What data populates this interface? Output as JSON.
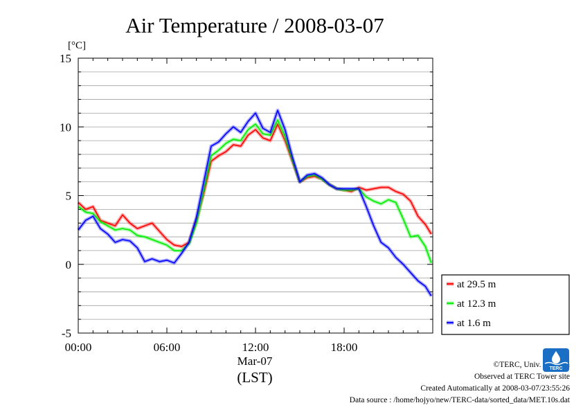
{
  "chart_data": {
    "type": "line",
    "title": "Air Temperature / 2008-03-07",
    "ylabel": "[°C]",
    "xlabel_date": "Mar-07",
    "xlabel_unit": "(LST)",
    "ylim": [
      -5,
      15
    ],
    "xlim": [
      0,
      24
    ],
    "yticks": [
      "15",
      "10",
      "5",
      "0",
      "-5"
    ],
    "xticks": [
      "00:00",
      "06:00",
      "12:00",
      "18:00"
    ],
    "grid": true,
    "legend_position": "right, outside plot",
    "series": [
      {
        "name": "at 29.5 m",
        "color": "#ff0000",
        "x": [
          0,
          0.5,
          1,
          1.5,
          2,
          2.5,
          3,
          3.5,
          4,
          4.5,
          5,
          5.5,
          6,
          6.5,
          7,
          7.5,
          8,
          8.5,
          9,
          9.5,
          10,
          10.5,
          11,
          11.5,
          12,
          12.5,
          13,
          13.5,
          14,
          14.5,
          15,
          15.5,
          16,
          16.5,
          17,
          17.5,
          18,
          18.5,
          19,
          19.5,
          20,
          20.5,
          21,
          21.5,
          22,
          22.5,
          23,
          23.5,
          23.9
        ],
        "values": [
          4.5,
          4.0,
          4.2,
          3.2,
          3.0,
          2.8,
          3.6,
          3.0,
          2.6,
          2.8,
          3.0,
          2.4,
          1.8,
          1.4,
          1.3,
          1.6,
          3.2,
          5.2,
          7.5,
          7.9,
          8.2,
          8.7,
          8.6,
          9.4,
          9.8,
          9.2,
          9.0,
          10.2,
          9.0,
          7.5,
          6.0,
          6.3,
          6.4,
          6.2,
          5.8,
          5.5,
          5.4,
          5.3,
          5.6,
          5.4,
          5.5,
          5.6,
          5.6,
          5.3,
          5.1,
          4.6,
          3.5,
          2.9,
          2.2
        ]
      },
      {
        "name": "at 12.3 m",
        "color": "#00ee00",
        "x": [
          0,
          0.5,
          1,
          1.5,
          2,
          2.5,
          3,
          3.5,
          4,
          4.5,
          5,
          5.5,
          6,
          6.5,
          7,
          7.5,
          8,
          8.5,
          9,
          9.5,
          10,
          10.5,
          11,
          11.5,
          12,
          12.5,
          13,
          13.5,
          14,
          14.5,
          15,
          15.5,
          16,
          16.5,
          17,
          17.5,
          18,
          18.5,
          19,
          19.5,
          20,
          20.5,
          21,
          21.5,
          22,
          22.5,
          23,
          23.5,
          23.9
        ],
        "values": [
          4.2,
          3.8,
          3.7,
          3.1,
          2.8,
          2.5,
          2.6,
          2.5,
          2.1,
          2.0,
          1.8,
          1.6,
          1.4,
          1.0,
          1.0,
          1.5,
          3.0,
          5.4,
          7.9,
          8.3,
          8.8,
          9.1,
          9.0,
          9.8,
          10.2,
          9.5,
          9.4,
          10.5,
          9.3,
          7.6,
          6.0,
          6.4,
          6.5,
          6.2,
          5.8,
          5.5,
          5.4,
          5.4,
          5.5,
          4.9,
          4.6,
          4.4,
          4.7,
          4.5,
          3.3,
          2.0,
          2.1,
          1.3,
          0.1
        ]
      },
      {
        "name": "at 1.6 m",
        "color": "#0000ff",
        "x": [
          0,
          0.5,
          1,
          1.5,
          2,
          2.5,
          3,
          3.5,
          4,
          4.5,
          5,
          5.5,
          6,
          6.5,
          7,
          7.5,
          8,
          8.5,
          9,
          9.5,
          10,
          10.5,
          11,
          11.5,
          12,
          12.5,
          13,
          13.5,
          14,
          14.5,
          15,
          15.5,
          16,
          16.5,
          17,
          17.5,
          18,
          18.5,
          19,
          19.5,
          20,
          20.5,
          21,
          21.5,
          22,
          22.5,
          23,
          23.5,
          23.9
        ],
        "values": [
          2.5,
          3.2,
          3.5,
          2.6,
          2.2,
          1.6,
          1.8,
          1.7,
          1.2,
          0.2,
          0.4,
          0.2,
          0.3,
          0.1,
          0.8,
          1.6,
          3.4,
          6.0,
          8.6,
          8.9,
          9.5,
          10.0,
          9.6,
          10.4,
          11.0,
          9.9,
          9.6,
          11.2,
          9.8,
          7.8,
          6.0,
          6.5,
          6.6,
          6.3,
          5.8,
          5.5,
          5.5,
          5.5,
          5.5,
          4.2,
          2.8,
          1.6,
          1.2,
          0.5,
          0.0,
          -0.6,
          -1.2,
          -1.6,
          -2.3
        ]
      }
    ]
  },
  "credits": {
    "copyright": "©TERC, Univ. Tsukuba",
    "site": "Observed at TERC Tower site",
    "created": "Created Automatically at 2008-03-07/23:55:26",
    "source": "Data source : /home/hojyo/new/TERC-data/sorted_data/MET.10s.dat"
  },
  "logo_text": "TERC"
}
